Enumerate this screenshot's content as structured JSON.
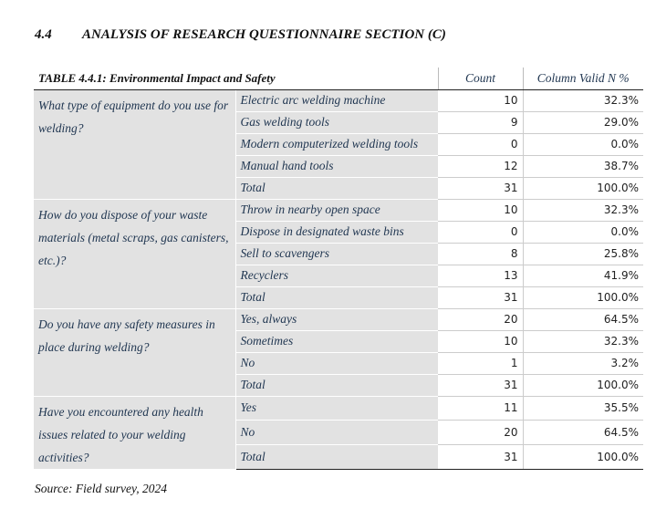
{
  "heading": {
    "number": "4.4",
    "title": "ANALYSIS OF RESEARCH QUESTIONNAIRE SECTION (C)"
  },
  "table": {
    "caption": "TABLE 4.4.1: Environmental Impact and Safety",
    "columns": [
      "Count",
      "Column Valid N %"
    ],
    "groups": [
      {
        "question": "What type of equipment do you use for welding?",
        "rows": [
          [
            "Electric arc welding machine",
            10,
            "32.3%"
          ],
          [
            "Gas welding tools",
            9,
            "29.0%"
          ],
          [
            "Modern computerized welding tools",
            0,
            "0.0%"
          ],
          [
            "Manual hand tools",
            12,
            "38.7%"
          ],
          [
            "Total",
            31,
            "100.0%"
          ]
        ]
      },
      {
        "question": "How do you dispose of your waste materials (metal scraps, gas canisters, etc.)?",
        "rows": [
          [
            "Throw in nearby open space",
            10,
            "32.3%"
          ],
          [
            "Dispose in designated waste bins",
            0,
            "0.0%"
          ],
          [
            "Sell to scavengers",
            8,
            "25.8%"
          ],
          [
            "Recyclers",
            13,
            "41.9%"
          ],
          [
            "Total",
            31,
            "100.0%"
          ]
        ]
      },
      {
        "question": "Do you have any safety measures in place during welding?",
        "rows": [
          [
            "Yes, always",
            20,
            "64.5%"
          ],
          [
            "Sometimes",
            10,
            "32.3%"
          ],
          [
            "No",
            1,
            "3.2%"
          ],
          [
            "Total",
            31,
            "100.0%"
          ]
        ]
      },
      {
        "question": "Have you encountered any health issues related to your welding activities?",
        "rows": [
          [
            "Yes",
            11,
            "35.5%"
          ],
          [
            "No",
            20,
            "64.5%"
          ],
          [
            "Total",
            31,
            "100.0%"
          ]
        ]
      }
    ]
  },
  "source": "Source: Field survey, 2024"
}
